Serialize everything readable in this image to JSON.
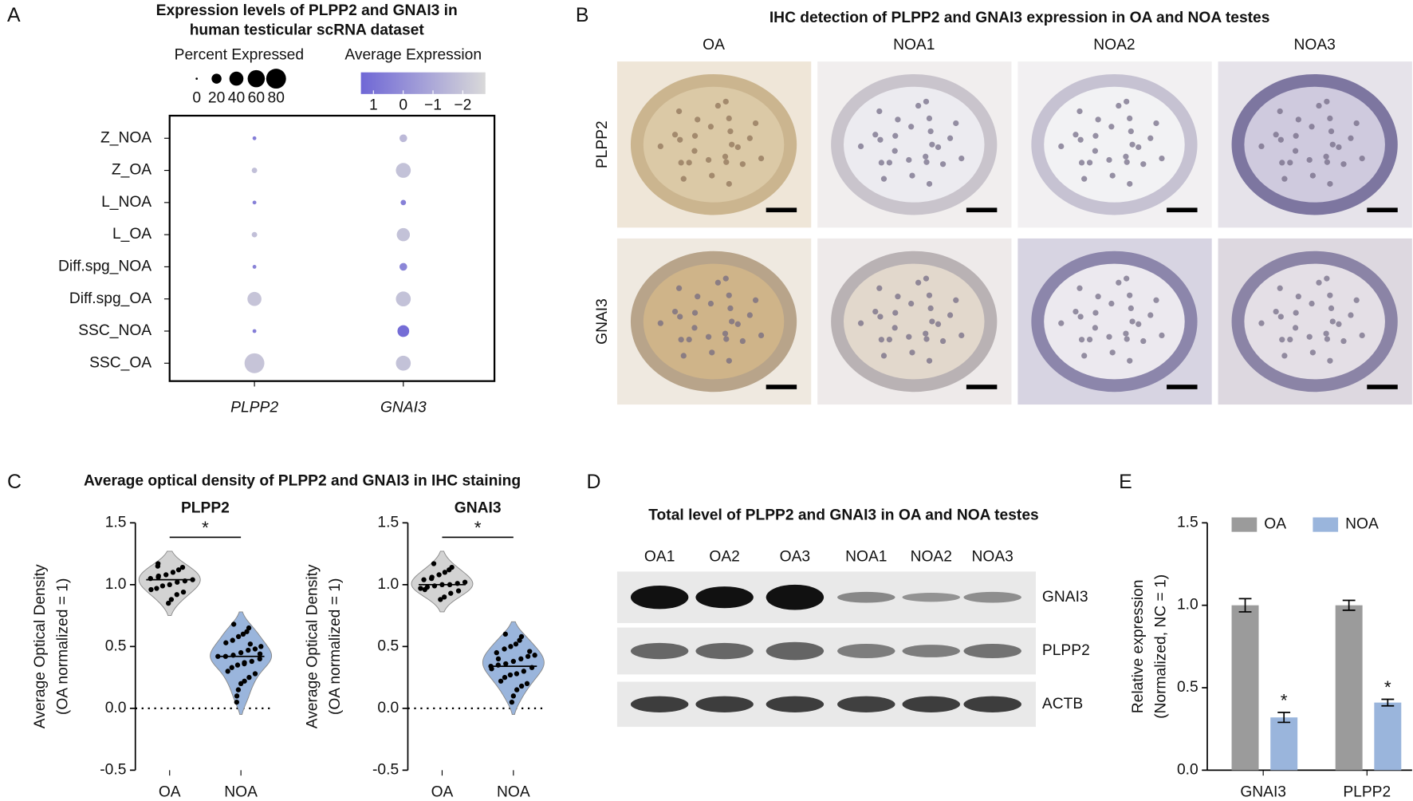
{
  "panel_labels": [
    "A",
    "B",
    "C",
    "D",
    "E"
  ],
  "chart_data": [
    {
      "type": "dot",
      "title": [
        "Expression levels of PLPP2 and GNAI3 in",
        "human testicular scRNA dataset"
      ],
      "categories": [
        "Z_NOA",
        "Z_OA",
        "L_NOA",
        "L_OA",
        "Diff.spg_NOA",
        "Diff.spg_OA",
        "SSC_NOA",
        "SSC_OA"
      ],
      "series": [
        {
          "name": "PLPP2",
          "percent": [
            3,
            6,
            3,
            6,
            3,
            40,
            3,
            80
          ],
          "expression": [
            0.6,
            -1.8,
            0.5,
            -1.8,
            0.4,
            -2.0,
            0.6,
            -2.0
          ]
        },
        {
          "name": "GNAI3",
          "percent": [
            12,
            45,
            6,
            35,
            12,
            45,
            28,
            45
          ],
          "expression": [
            -1.6,
            -1.9,
            0.5,
            -1.9,
            0.3,
            -1.9,
            1.2,
            -1.9
          ]
        }
      ],
      "size_legend": {
        "title": "Percent Expressed",
        "values": [
          0,
          20,
          40,
          60,
          80
        ]
      },
      "color_legend": {
        "title": "Average Expression",
        "colors": [
          "#6f67d6",
          "#d9d9d9"
        ],
        "lim": [
          1.42,
          -2.76
        ],
        "ticks": [
          1,
          0,
          {
            "value": -1,
            "label": "−1"
          },
          {
            "value": -2,
            "label": "−2"
          }
        ]
      }
    },
    {
      "type": "violin",
      "title": "PLPP2",
      "categories": [
        "OA",
        "NOA"
      ],
      "colors": [
        "#d3d3d3",
        "#9ab5dc"
      ],
      "values": [
        [
          1.17,
          1.14,
          1.12,
          1.1,
          1.08,
          1.07,
          1.05,
          1.04,
          1.03,
          1.02,
          1.0,
          0.99,
          0.97,
          0.96,
          0.94,
          0.92,
          0.88,
          0.85,
          1.06,
          1.15
        ],
        [
          0.68,
          0.65,
          0.62,
          0.6,
          0.58,
          0.55,
          0.53,
          0.5,
          0.48,
          0.47,
          0.45,
          0.43,
          0.42,
          0.42,
          0.4,
          0.38,
          0.36,
          0.35,
          0.33,
          0.3,
          0.28,
          0.25,
          0.22,
          0.2,
          0.15,
          0.1,
          0.05,
          0.44,
          0.52,
          0.37
        ]
      ],
      "medians": [
        1.04,
        0.42
      ],
      "annotation": "*",
      "reference_line": 0,
      "ylabel": [
        "Average Optical Density",
        "(OA normalized = 1)"
      ],
      "ylim": [
        -0.5,
        1.5
      ],
      "yticks": [
        -0.5,
        {
          "value": 0,
          "label": "0.0"
        },
        0.5,
        {
          "value": 1,
          "label": "1.0"
        },
        1.5
      ]
    },
    {
      "type": "violin",
      "title": "GNAI3",
      "categories": [
        "OA",
        "NOA"
      ],
      "colors": [
        "#d3d3d3",
        "#9ab5dc"
      ],
      "values": [
        [
          1.17,
          1.14,
          1.12,
          1.1,
          1.08,
          1.06,
          1.04,
          1.02,
          1.01,
          1.0,
          1.0,
          0.99,
          0.98,
          0.97,
          0.95,
          0.93,
          0.9,
          0.88,
          1.05,
          0.96
        ],
        [
          0.6,
          0.58,
          0.55,
          0.52,
          0.5,
          0.48,
          0.45,
          0.43,
          0.42,
          0.4,
          0.38,
          0.36,
          0.35,
          0.34,
          0.33,
          0.3,
          0.28,
          0.27,
          0.25,
          0.22,
          0.2,
          0.18,
          0.15,
          0.1,
          0.05,
          0.4,
          0.32,
          0.46
        ]
      ],
      "medians": [
        1.0,
        0.34
      ],
      "annotation": "*",
      "reference_line": 0,
      "ylabel": [
        "Average Optical Density",
        "(OA normalized = 1)"
      ],
      "ylim": [
        -0.5,
        1.5
      ],
      "yticks": [
        -0.5,
        {
          "value": 0,
          "label": "0.0"
        },
        0.5,
        {
          "value": 1,
          "label": "1.0"
        },
        1.5
      ]
    },
    {
      "type": "bar",
      "categories": [
        "GNAI3",
        "PLPP2"
      ],
      "series": [
        {
          "name": "OA",
          "color": "#9b9b9b",
          "values": [
            1.0,
            1.0
          ],
          "errors": [
            0.04,
            0.03
          ]
        },
        {
          "name": "NOA",
          "color": "#9ab5dc",
          "values": [
            0.32,
            0.41
          ],
          "errors": [
            0.03,
            0.02
          ],
          "significance": [
            "*",
            "*"
          ]
        }
      ],
      "ylabel": [
        "Relative expression",
        "(Normalized, NC = 1)"
      ],
      "ylim": [
        0,
        1.5
      ],
      "yticks": [
        {
          "value": 0,
          "label": "0.0"
        },
        0.5,
        {
          "value": 1,
          "label": "1.0"
        },
        1.5
      ]
    }
  ],
  "panel_b": {
    "title": "IHC detection of PLPP2 and GNAI3 expression in OA and NOA testes",
    "columns": [
      "OA",
      "NOA1",
      "NOA2",
      "NOA3"
    ],
    "rows": [
      "PLPP2",
      "GNAI3"
    ]
  },
  "panel_c": {
    "title": "Average optical density of PLPP2 and GNAI3 in IHC staining"
  },
  "panel_d": {
    "title": "Total level of PLPP2 and GNAI3 in OA and NOA testes",
    "lanes": [
      "OA1",
      "OA2",
      "OA3",
      "NOA1",
      "NOA2",
      "NOA3"
    ],
    "bands": [
      "GNAI3",
      "PLPP2",
      "ACTB"
    ]
  }
}
